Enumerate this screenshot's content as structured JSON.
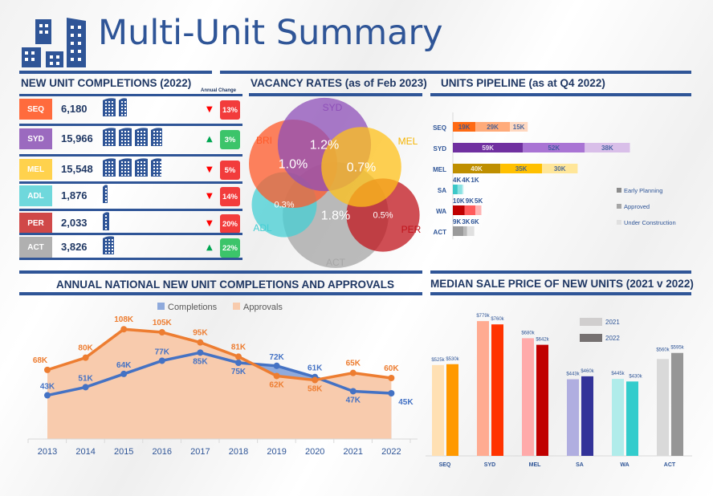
{
  "header": {
    "title": "Multi-Unit Summary",
    "logo_icon": "buildings-icon"
  },
  "colors": {
    "brand_blue": "#2f5597",
    "heading_dark": "#203864",
    "up_green": "#00a651",
    "down_red": "#ff0000"
  },
  "completions": {
    "title": "NEW UNIT COMPLETIONS (2022)",
    "annual_change_label": "Annual Change",
    "rows": [
      {
        "code": "SEQ",
        "value": "6,180",
        "buildings": 1.6,
        "direction": "down",
        "change": "13%",
        "color": "#ff6b3d"
      },
      {
        "code": "SYD",
        "value": "15,966",
        "buildings": 3.9,
        "direction": "up",
        "change": "3%",
        "color": "#9b6abf"
      },
      {
        "code": "MEL",
        "value": "15,548",
        "buildings": 3.8,
        "direction": "down",
        "change": "5%",
        "color": "#ffd24d"
      },
      {
        "code": "ADL",
        "value": "1,876",
        "buildings": 0.4,
        "direction": "down",
        "change": "14%",
        "color": "#6fd8dc"
      },
      {
        "code": "PER",
        "value": "2,033",
        "buildings": 0.5,
        "direction": "down",
        "change": "20%",
        "color": "#d04848"
      },
      {
        "code": "ACT",
        "value": "3,826",
        "buildings": 0.9,
        "direction": "up",
        "change": "22%",
        "color": "#b0b0b0"
      }
    ]
  },
  "vacancy": {
    "title": "VACANCY RATES (as of Feb 2023)",
    "bubbles": [
      {
        "city": "SYD",
        "rate": "1.2%",
        "value": 1.2,
        "color": "#8e4fb8"
      },
      {
        "city": "BRI",
        "rate": "1.0%",
        "value": 1.0,
        "color": "#ff5a2a"
      },
      {
        "city": "MEL",
        "rate": "0.7%",
        "value": 0.7,
        "color": "#ffc21a"
      },
      {
        "city": "ADL",
        "rate": "0.3%",
        "value": 0.3,
        "color": "#45cfd4"
      },
      {
        "city": "ACT",
        "rate": "1.8%",
        "value": 1.8,
        "color": "#a6a6a6"
      },
      {
        "city": "PER",
        "rate": "0.5%",
        "value": 0.5,
        "color": "#c0141c"
      }
    ]
  },
  "chart_data": [
    {
      "id": "pipeline",
      "type": "bar",
      "orientation": "horizontal-stacked",
      "title": "UNITS PIPELINE (as at Q4 2022)",
      "categories": [
        "SEQ",
        "SYD",
        "MEL",
        "SA",
        "WA",
        "ACT"
      ],
      "series": [
        {
          "name": "Early Planning",
          "values": [
            19,
            59,
            40,
            4,
            10,
            9
          ],
          "labels": [
            "19K",
            "59K",
            "40K",
            "4K",
            "10K",
            "9K"
          ]
        },
        {
          "name": "Approved",
          "values": [
            29,
            52,
            35,
            4,
            9,
            3
          ],
          "labels": [
            "29K",
            "52K",
            "35K",
            "4K",
            "9K",
            "3K"
          ]
        },
        {
          "name": "Under Construction",
          "values": [
            15,
            38,
            30,
            1,
            5,
            6
          ],
          "labels": [
            "15K",
            "38K",
            "30K",
            "1K",
            "5K",
            "6K"
          ]
        }
      ],
      "category_colors": [
        [
          "#ff6a13",
          "#ffab7a",
          "#ffd8c0"
        ],
        [
          "#7030a0",
          "#a974d4",
          "#d9bfe9"
        ],
        [
          "#bf8f00",
          "#ffc000",
          "#ffe699"
        ],
        [
          "#3cc8c8",
          "#8ae2e2",
          "#c9f2f2"
        ],
        [
          "#c00000",
          "#ff5b5b",
          "#ffb3b3"
        ],
        [
          "#9a9a9a",
          "#b8b8b8",
          "#e0e0e0"
        ]
      ],
      "legend": [
        "Early Planning",
        "Approved",
        "Under Construction"
      ],
      "legend_colors": [
        "#8c8c8c",
        "#a6a6a6",
        "#e0e0e0"
      ],
      "legend_position": "right",
      "units": "thousands"
    },
    {
      "id": "national",
      "type": "line",
      "title": "ANNUAL NATIONAL NEW UNIT COMPLETIONS AND APPROVALS",
      "x": [
        "2013",
        "2014",
        "2015",
        "2016",
        "2017",
        "2018",
        "2019",
        "2020",
        "2021",
        "2022"
      ],
      "series": [
        {
          "name": "Completions",
          "values": [
            43,
            51,
            64,
            77,
            85,
            75,
            72,
            61,
            47,
            45
          ],
          "labels": [
            "43K",
            "51K",
            "64K",
            "77K",
            "85K",
            "75K",
            "72K",
            "61K",
            "47K",
            "45K"
          ],
          "color": "#4472c4"
        },
        {
          "name": "Approvals",
          "values": [
            68,
            80,
            108,
            105,
            95,
            81,
            62,
            58,
            65,
            60
          ],
          "labels": [
            "68K",
            "80K",
            "108K",
            "105K",
            "95K",
            "81K",
            "62K",
            "58K",
            "65K",
            "60K"
          ],
          "color": "#ed7d31"
        }
      ],
      "legend": [
        "Completions",
        "Approvals"
      ],
      "legend_position": "top",
      "ylim": [
        0,
        120
      ],
      "grid": false
    },
    {
      "id": "median-price",
      "type": "bar",
      "title": "MEDIAN SALE PRICE OF NEW UNITS (2021 v 2022)",
      "categories": [
        "SEQ",
        "SYD",
        "MEL",
        "SA",
        "WA",
        "ACT"
      ],
      "series": [
        {
          "name": "2021",
          "values": [
            525,
            779,
            680,
            443,
            445,
            560
          ],
          "labels": [
            "$525k",
            "$779k",
            "$680k",
            "$443k",
            "$445k",
            "$560k"
          ],
          "colors": [
            "#ffe0b3",
            "#ffab91",
            "#ffaaaa",
            "#b0aee0",
            "#b0ecea",
            "#d9d9d9"
          ]
        },
        {
          "name": "2022",
          "values": [
            530,
            760,
            642,
            460,
            430,
            595
          ],
          "labels": [
            "$530k",
            "$760k",
            "$642k",
            "$460k",
            "$430k",
            "$595k"
          ],
          "colors": [
            "#ff9900",
            "#ff3300",
            "#c00000",
            "#333399",
            "#33cccc",
            "#969696"
          ]
        }
      ],
      "legend": [
        "2021",
        "2022"
      ],
      "legend_colors": [
        "#d0cece",
        "#767171"
      ],
      "legend_position": "top-center",
      "ylim": [
        0,
        900
      ],
      "units": "$ thousands"
    }
  ]
}
